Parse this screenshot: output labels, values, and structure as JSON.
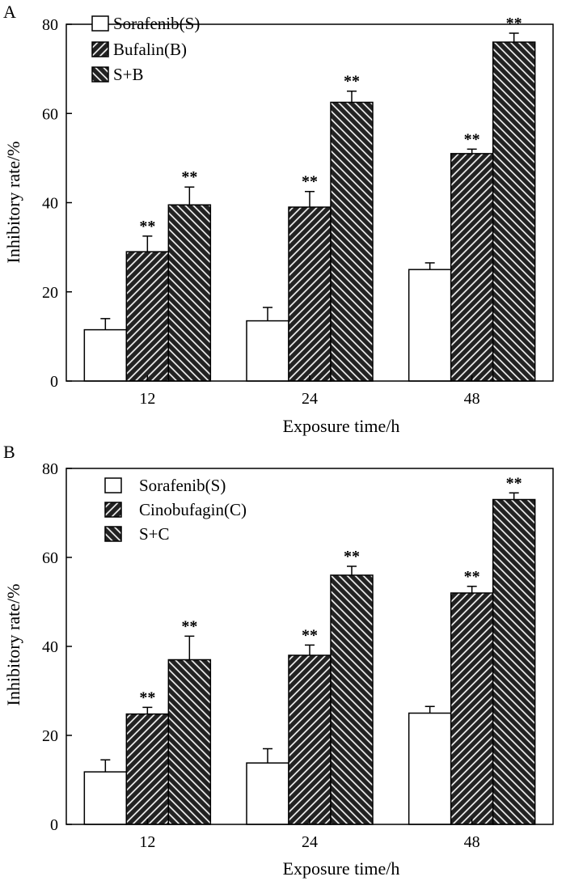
{
  "chart_data": [
    {
      "type": "bar",
      "panel_label": "A",
      "categories": [
        "12",
        "24",
        "48"
      ],
      "series": [
        {
          "name": "Sorafenib(S)",
          "values": [
            11.5,
            13.5,
            25.0
          ],
          "errors": [
            2.5,
            3.0,
            1.5
          ],
          "significance": [
            "",
            "",
            ""
          ],
          "pattern": "none"
        },
        {
          "name": "Bufalin(B)",
          "values": [
            29.0,
            39.0,
            51.0
          ],
          "errors": [
            3.5,
            3.5,
            1.0
          ],
          "significance": [
            "**",
            "**",
            "**"
          ],
          "pattern": "forward"
        },
        {
          "name": "S+B",
          "values": [
            39.5,
            62.5,
            76.0
          ],
          "errors": [
            4.0,
            2.5,
            2.0
          ],
          "significance": [
            "**",
            "**",
            "**"
          ],
          "pattern": "backward"
        }
      ],
      "xlabel": "Exposure time/h",
      "ylabel": "Inhibitory rate/%",
      "ylim": [
        0,
        80
      ],
      "yticks": [
        "0",
        "20",
        "40",
        "60",
        "80"
      ],
      "legend": "top-left"
    },
    {
      "type": "bar",
      "panel_label": "B",
      "categories": [
        "12",
        "24",
        "48"
      ],
      "series": [
        {
          "name": "Sorafenib(S)",
          "values": [
            11.8,
            13.8,
            25.0
          ],
          "errors": [
            2.7,
            3.2,
            1.5
          ],
          "significance": [
            "",
            "",
            ""
          ],
          "pattern": "none"
        },
        {
          "name": "Cinobufagin(C)",
          "values": [
            24.8,
            38.0,
            52.0
          ],
          "errors": [
            1.5,
            2.3,
            1.5
          ],
          "significance": [
            "**",
            "**",
            "**"
          ],
          "pattern": "forward"
        },
        {
          "name": "S+C",
          "values": [
            37.0,
            56.0,
            73.0
          ],
          "errors": [
            5.3,
            2.0,
            1.5
          ],
          "significance": [
            "**",
            "**",
            "**"
          ],
          "pattern": "backward"
        }
      ],
      "xlabel": "Exposure time/h",
      "ylabel": "Inhibitory rate/%",
      "ylim": [
        0,
        80
      ],
      "yticks": [
        "0",
        "20",
        "40",
        "60",
        "80"
      ],
      "legend": "top-left"
    }
  ]
}
